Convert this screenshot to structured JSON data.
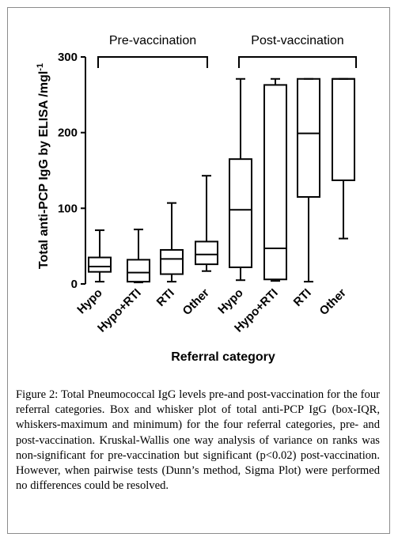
{
  "chart_data": {
    "type": "box",
    "ylabel": "Total anti-PCP IgG by ELISA /mgl",
    "ylabel_superscript": "-1",
    "xlabel": "Referral category",
    "ylim": [
      0,
      300
    ],
    "yticks": [
      0,
      100,
      200,
      300
    ],
    "groups": [
      {
        "label": "Pre-vaccination",
        "categories": [
          "Hypo",
          "Hypo+RTI",
          "RTI",
          "Other"
        ]
      },
      {
        "label": "Post-vaccination",
        "categories": [
          "Hypo",
          "Hypo+RTI",
          "RTI",
          "Other"
        ]
      }
    ],
    "boxes": [
      {
        "category": "Hypo",
        "group": "Pre-vaccination",
        "min": 3,
        "q1": 16,
        "median": 23,
        "q3": 35,
        "max": 71
      },
      {
        "category": "Hypo+RTI",
        "group": "Pre-vaccination",
        "min": 2,
        "q1": 3,
        "median": 15,
        "q3": 32,
        "max": 72
      },
      {
        "category": "RTI",
        "group": "Pre-vaccination",
        "min": 3,
        "q1": 13,
        "median": 33,
        "q3": 45,
        "max": 107
      },
      {
        "category": "Other",
        "group": "Pre-vaccination",
        "min": 17,
        "q1": 26,
        "median": 39,
        "q3": 56,
        "max": 143
      },
      {
        "category": "Hypo",
        "group": "Post-vaccination",
        "min": 5,
        "q1": 22,
        "median": 98,
        "q3": 165,
        "max": 271
      },
      {
        "category": "Hypo+RTI",
        "group": "Post-vaccination",
        "min": 4,
        "q1": 6,
        "median": 47,
        "q3": 263,
        "max": 271
      },
      {
        "category": "RTI",
        "group": "Post-vaccination",
        "min": 3,
        "q1": 115,
        "median": 199,
        "q3": 271,
        "max": 271
      },
      {
        "category": "Other",
        "group": "Post-vaccination",
        "min": 60,
        "q1": 137,
        "median": 271,
        "q3": 271,
        "max": 271
      }
    ]
  },
  "caption": {
    "label": "Figure 2:",
    "text": "Total Pneumococcal IgG levels pre-and post-vaccination for the four referral categories. Box and whisker plot of total anti-PCP IgG (box-IQR, whiskers-maximum and minimum) for the four referral categories, pre- and post-vaccination. Kruskal-Wallis one way analysis of variance on ranks was non-significant for pre-vaccination but significant (p<0.02) post-vaccination. However, when pairwise tests (Dunn’s method, Sigma Plot) were performed no differences could be resolved."
  }
}
